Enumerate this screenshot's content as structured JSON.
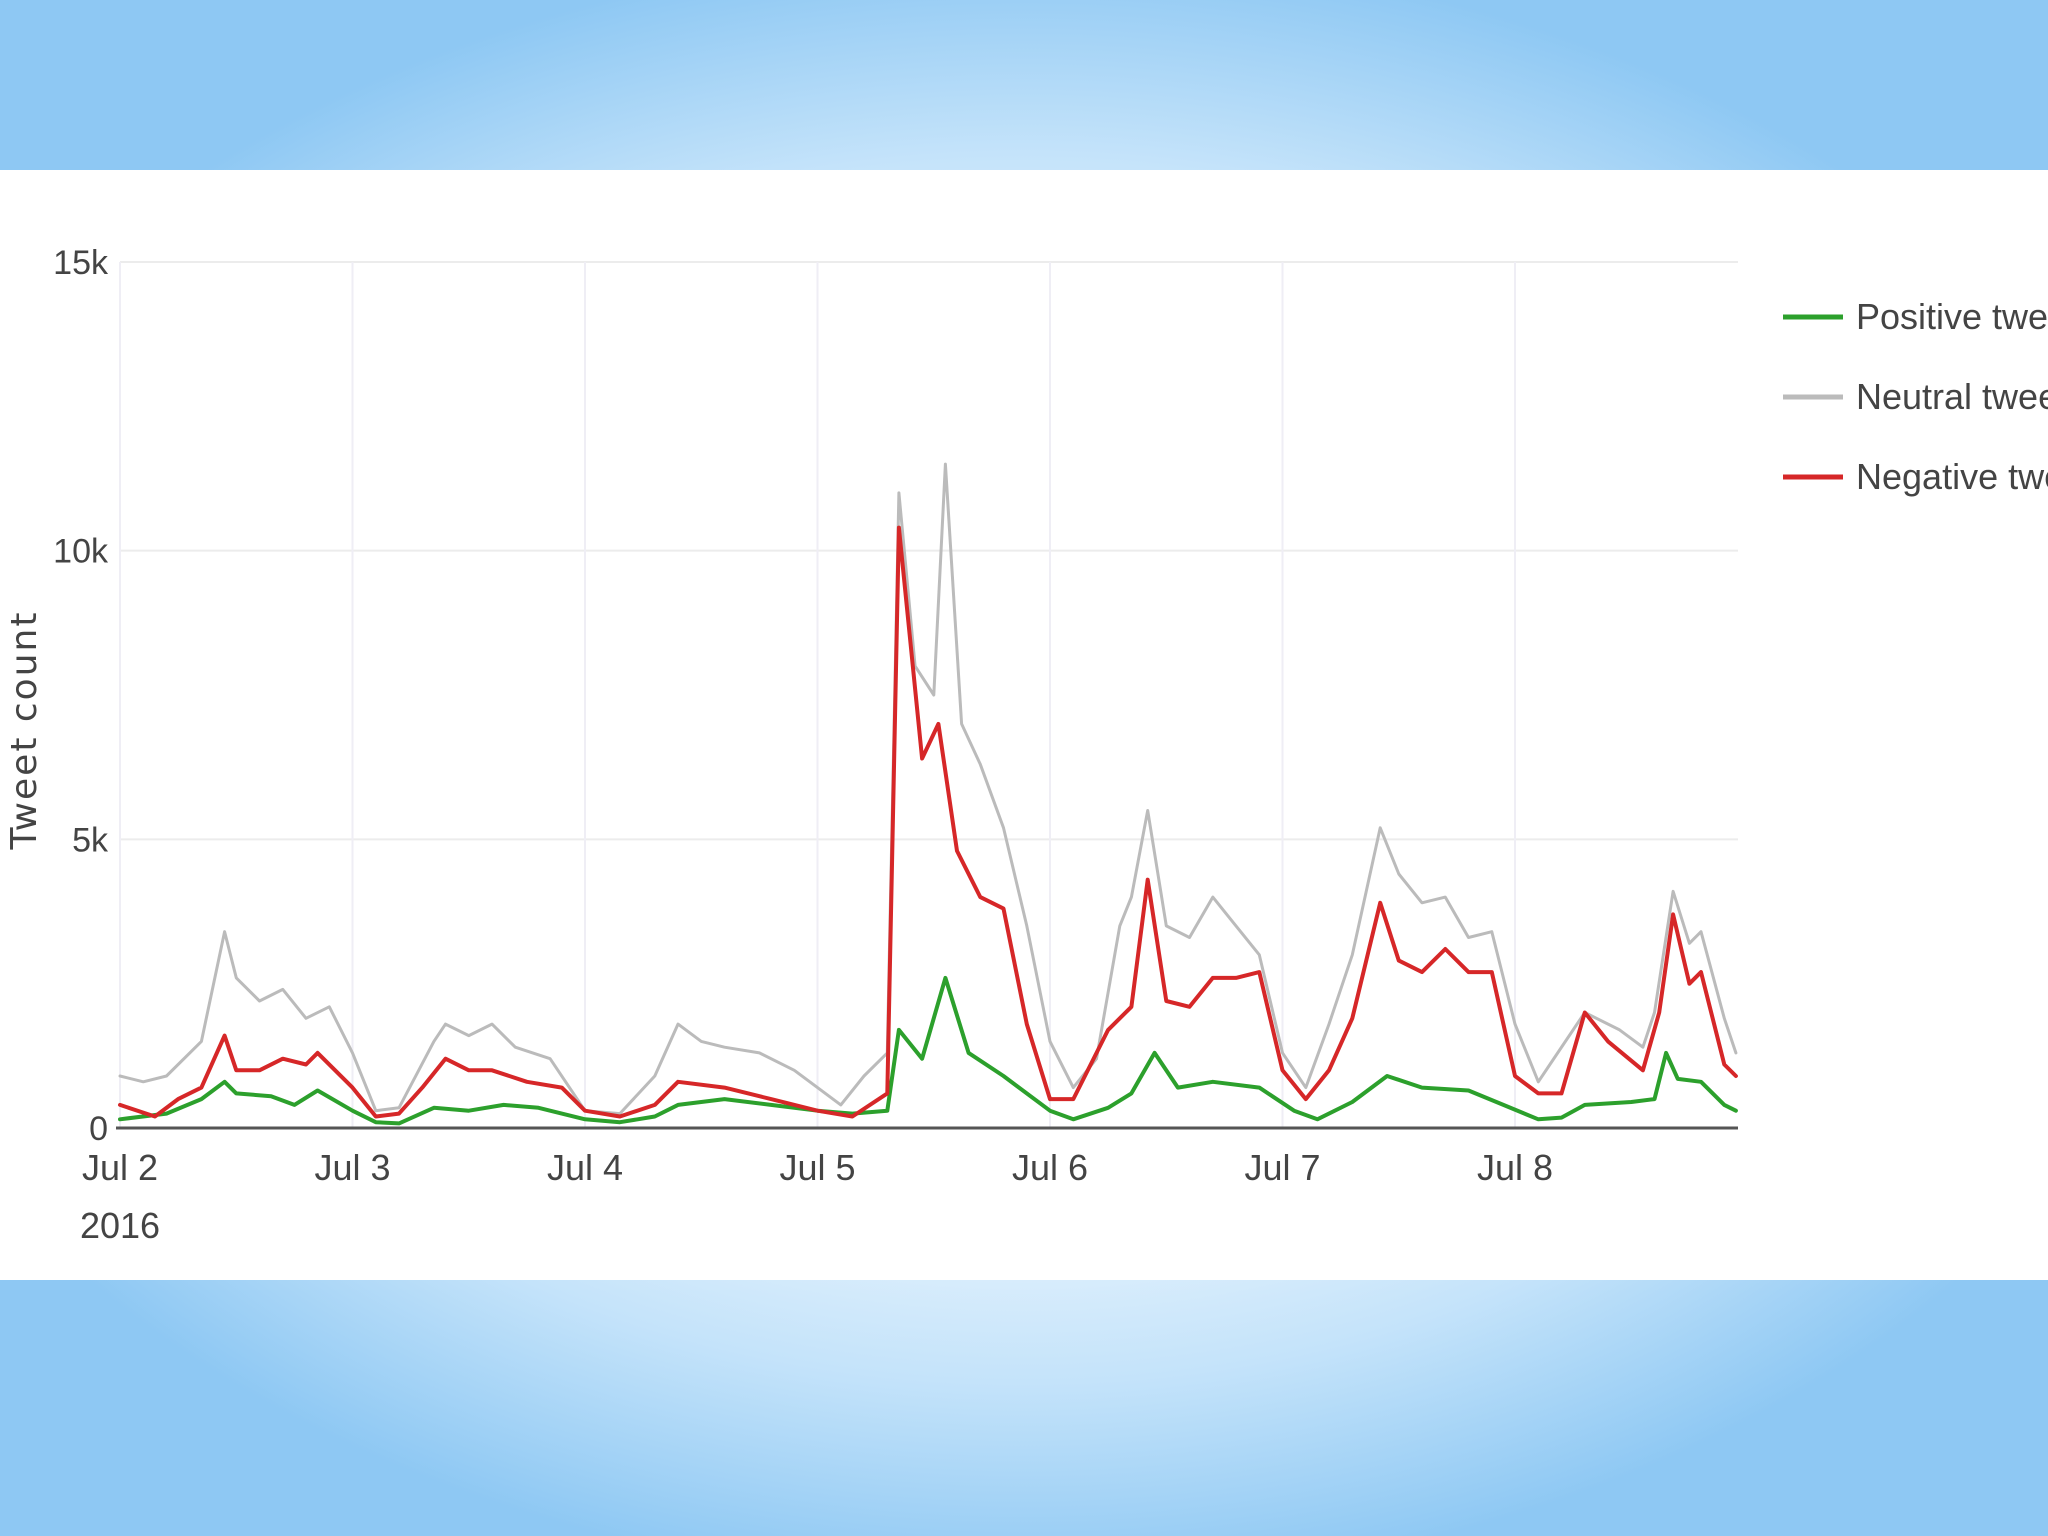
{
  "chart_data": {
    "type": "line",
    "title": "",
    "xlabel": "",
    "ylabel": "Tweet count",
    "ylim": [
      0,
      15000
    ],
    "yticks": [
      {
        "value": 0,
        "label": "0"
      },
      {
        "value": 5000,
        "label": "5k"
      },
      {
        "value": 10000,
        "label": "10k"
      },
      {
        "value": 15000,
        "label": "15k"
      }
    ],
    "xlim": [
      0,
      6.95
    ],
    "x_unit": "days from Jul 2 2016",
    "xticks": [
      {
        "value": 0,
        "label": "Jul 2",
        "sublabel": "2016"
      },
      {
        "value": 1,
        "label": "Jul 3"
      },
      {
        "value": 2,
        "label": "Jul 4"
      },
      {
        "value": 3,
        "label": "Jul 5"
      },
      {
        "value": 4,
        "label": "Jul 6"
      },
      {
        "value": 5,
        "label": "Jul 7"
      },
      {
        "value": 6,
        "label": "Jul 8"
      }
    ],
    "grid": true,
    "legend_position": "top-right",
    "series": [
      {
        "name": "Positive tweets",
        "color": "#2ca02c",
        "points": [
          [
            0,
            150
          ],
          [
            0.2,
            250
          ],
          [
            0.35,
            500
          ],
          [
            0.45,
            800
          ],
          [
            0.5,
            600
          ],
          [
            0.65,
            550
          ],
          [
            0.75,
            400
          ],
          [
            0.85,
            650
          ],
          [
            1,
            300
          ],
          [
            1.1,
            100
          ],
          [
            1.2,
            80
          ],
          [
            1.35,
            350
          ],
          [
            1.5,
            300
          ],
          [
            1.65,
            400
          ],
          [
            1.8,
            350
          ],
          [
            2,
            150
          ],
          [
            2.15,
            100
          ],
          [
            2.3,
            200
          ],
          [
            2.4,
            400
          ],
          [
            2.6,
            500
          ],
          [
            2.8,
            400
          ],
          [
            3,
            300
          ],
          [
            3.15,
            250
          ],
          [
            3.3,
            300
          ],
          [
            3.35,
            1700
          ],
          [
            3.45,
            1200
          ],
          [
            3.55,
            2600
          ],
          [
            3.65,
            1300
          ],
          [
            3.8,
            900
          ],
          [
            4,
            300
          ],
          [
            4.1,
            150
          ],
          [
            4.25,
            350
          ],
          [
            4.35,
            600
          ],
          [
            4.45,
            1300
          ],
          [
            4.55,
            700
          ],
          [
            4.7,
            800
          ],
          [
            4.9,
            700
          ],
          [
            5.05,
            300
          ],
          [
            5.15,
            150
          ],
          [
            5.3,
            450
          ],
          [
            5.45,
            900
          ],
          [
            5.6,
            700
          ],
          [
            5.8,
            650
          ],
          [
            5.95,
            400
          ],
          [
            6.1,
            150
          ],
          [
            6.2,
            180
          ],
          [
            6.3,
            400
          ],
          [
            6.5,
            450
          ],
          [
            6.6,
            500
          ],
          [
            6.65,
            1300
          ],
          [
            6.7,
            850
          ],
          [
            6.8,
            800
          ],
          [
            6.9,
            400
          ],
          [
            6.95,
            300
          ]
        ]
      },
      {
        "name": "Neutral tweets",
        "color": "#bbbbbb",
        "points": [
          [
            0,
            900
          ],
          [
            0.1,
            800
          ],
          [
            0.2,
            900
          ],
          [
            0.35,
            1500
          ],
          [
            0.45,
            3400
          ],
          [
            0.5,
            2600
          ],
          [
            0.6,
            2200
          ],
          [
            0.7,
            2400
          ],
          [
            0.8,
            1900
          ],
          [
            0.9,
            2100
          ],
          [
            1,
            1300
          ],
          [
            1.1,
            300
          ],
          [
            1.2,
            350
          ],
          [
            1.35,
            1500
          ],
          [
            1.4,
            1800
          ],
          [
            1.5,
            1600
          ],
          [
            1.6,
            1800
          ],
          [
            1.7,
            1400
          ],
          [
            1.85,
            1200
          ],
          [
            2,
            300
          ],
          [
            2.15,
            250
          ],
          [
            2.3,
            900
          ],
          [
            2.4,
            1800
          ],
          [
            2.5,
            1500
          ],
          [
            2.6,
            1400
          ],
          [
            2.75,
            1300
          ],
          [
            2.9,
            1000
          ],
          [
            3,
            700
          ],
          [
            3.1,
            400
          ],
          [
            3.2,
            900
          ],
          [
            3.3,
            1300
          ],
          [
            3.35,
            11000
          ],
          [
            3.42,
            8000
          ],
          [
            3.5,
            7500
          ],
          [
            3.55,
            11500
          ],
          [
            3.62,
            7000
          ],
          [
            3.7,
            6300
          ],
          [
            3.8,
            5200
          ],
          [
            3.9,
            3500
          ],
          [
            4,
            1500
          ],
          [
            4.1,
            700
          ],
          [
            4.2,
            1200
          ],
          [
            4.3,
            3500
          ],
          [
            4.35,
            4000
          ],
          [
            4.42,
            5500
          ],
          [
            4.5,
            3500
          ],
          [
            4.6,
            3300
          ],
          [
            4.7,
            4000
          ],
          [
            4.8,
            3500
          ],
          [
            4.9,
            3000
          ],
          [
            5,
            1300
          ],
          [
            5.1,
            700
          ],
          [
            5.2,
            1800
          ],
          [
            5.3,
            3000
          ],
          [
            5.42,
            5200
          ],
          [
            5.5,
            4400
          ],
          [
            5.6,
            3900
          ],
          [
            5.7,
            4000
          ],
          [
            5.8,
            3300
          ],
          [
            5.9,
            3400
          ],
          [
            6,
            1800
          ],
          [
            6.1,
            800
          ],
          [
            6.15,
            1100
          ],
          [
            6.3,
            2000
          ],
          [
            6.45,
            1700
          ],
          [
            6.55,
            1400
          ],
          [
            6.6,
            2000
          ],
          [
            6.68,
            4100
          ],
          [
            6.75,
            3200
          ],
          [
            6.8,
            3400
          ],
          [
            6.9,
            1900
          ],
          [
            6.95,
            1300
          ]
        ]
      },
      {
        "name": "Negative tweets",
        "color": "#d62728",
        "points": [
          [
            0,
            400
          ],
          [
            0.15,
            200
          ],
          [
            0.25,
            500
          ],
          [
            0.35,
            700
          ],
          [
            0.45,
            1600
          ],
          [
            0.5,
            1000
          ],
          [
            0.6,
            1000
          ],
          [
            0.7,
            1200
          ],
          [
            0.8,
            1100
          ],
          [
            0.85,
            1300
          ],
          [
            1,
            700
          ],
          [
            1.1,
            200
          ],
          [
            1.2,
            250
          ],
          [
            1.3,
            700
          ],
          [
            1.4,
            1200
          ],
          [
            1.5,
            1000
          ],
          [
            1.6,
            1000
          ],
          [
            1.75,
            800
          ],
          [
            1.9,
            700
          ],
          [
            2,
            300
          ],
          [
            2.15,
            200
          ],
          [
            2.3,
            400
          ],
          [
            2.4,
            800
          ],
          [
            2.6,
            700
          ],
          [
            2.8,
            500
          ],
          [
            3,
            300
          ],
          [
            3.15,
            200
          ],
          [
            3.3,
            600
          ],
          [
            3.35,
            10400
          ],
          [
            3.45,
            6400
          ],
          [
            3.52,
            7000
          ],
          [
            3.6,
            4800
          ],
          [
            3.7,
            4000
          ],
          [
            3.8,
            3800
          ],
          [
            3.9,
            1800
          ],
          [
            4,
            500
          ],
          [
            4.1,
            500
          ],
          [
            4.25,
            1700
          ],
          [
            4.35,
            2100
          ],
          [
            4.42,
            4300
          ],
          [
            4.5,
            2200
          ],
          [
            4.6,
            2100
          ],
          [
            4.7,
            2600
          ],
          [
            4.8,
            2600
          ],
          [
            4.9,
            2700
          ],
          [
            5,
            1000
          ],
          [
            5.1,
            500
          ],
          [
            5.2,
            1000
          ],
          [
            5.3,
            1900
          ],
          [
            5.42,
            3900
          ],
          [
            5.5,
            2900
          ],
          [
            5.6,
            2700
          ],
          [
            5.7,
            3100
          ],
          [
            5.8,
            2700
          ],
          [
            5.9,
            2700
          ],
          [
            6,
            900
          ],
          [
            6.1,
            600
          ],
          [
            6.2,
            600
          ],
          [
            6.3,
            2000
          ],
          [
            6.4,
            1500
          ],
          [
            6.55,
            1000
          ],
          [
            6.62,
            2000
          ],
          [
            6.68,
            3700
          ],
          [
            6.75,
            2500
          ],
          [
            6.8,
            2700
          ],
          [
            6.9,
            1100
          ],
          [
            6.95,
            900
          ]
        ]
      }
    ]
  }
}
